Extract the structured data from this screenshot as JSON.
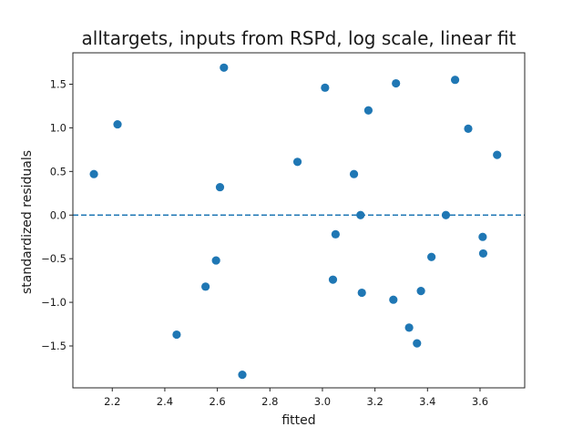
{
  "chart_data": {
    "type": "scatter",
    "title": "alltargets, inputs from RSPd, log scale, linear fit",
    "xlabel": "fitted",
    "ylabel": "standardized residuals",
    "xlim": [
      2.05,
      3.77
    ],
    "ylim": [
      -1.98,
      1.86
    ],
    "xticks": [
      2.2,
      2.4,
      2.6,
      2.8,
      3.0,
      3.2,
      3.4,
      3.6
    ],
    "xtick_labels": [
      "2.2",
      "2.4",
      "2.6",
      "2.8",
      "3.0",
      "3.2",
      "3.4",
      "3.6"
    ],
    "yticks": [
      -1.5,
      -1.0,
      -0.5,
      0.0,
      0.5,
      1.0,
      1.5
    ],
    "ytick_labels": [
      "−1.5",
      "−1.0",
      "−0.5",
      "0.0",
      "0.5",
      "1.0",
      "1.5"
    ],
    "grid": false,
    "reference_line": {
      "y": 0.0,
      "style": "dashed"
    },
    "series": [
      {
        "color": "#1f77b4",
        "points": [
          {
            "x": 2.13,
            "y": 0.47
          },
          {
            "x": 2.22,
            "y": 1.04
          },
          {
            "x": 2.445,
            "y": -1.37
          },
          {
            "x": 2.555,
            "y": -0.82
          },
          {
            "x": 2.595,
            "y": -0.52
          },
          {
            "x": 2.61,
            "y": 0.32
          },
          {
            "x": 2.625,
            "y": 1.69
          },
          {
            "x": 2.695,
            "y": -1.83
          },
          {
            "x": 2.905,
            "y": 0.61
          },
          {
            "x": 3.01,
            "y": 1.46
          },
          {
            "x": 3.04,
            "y": -0.74
          },
          {
            "x": 3.05,
            "y": -0.22
          },
          {
            "x": 3.12,
            "y": 0.47
          },
          {
            "x": 3.145,
            "y": 0.0
          },
          {
            "x": 3.15,
            "y": -0.89
          },
          {
            "x": 3.175,
            "y": 1.2
          },
          {
            "x": 3.27,
            "y": -0.97
          },
          {
            "x": 3.28,
            "y": 1.51
          },
          {
            "x": 3.33,
            "y": -1.29
          },
          {
            "x": 3.36,
            "y": -1.47
          },
          {
            "x": 3.375,
            "y": -0.87
          },
          {
            "x": 3.415,
            "y": -0.48
          },
          {
            "x": 3.47,
            "y": 0.0
          },
          {
            "x": 3.505,
            "y": 1.55
          },
          {
            "x": 3.555,
            "y": 0.99
          },
          {
            "x": 3.61,
            "y": -0.25
          },
          {
            "x": 3.612,
            "y": -0.44
          },
          {
            "x": 3.665,
            "y": 0.69
          }
        ]
      }
    ]
  }
}
